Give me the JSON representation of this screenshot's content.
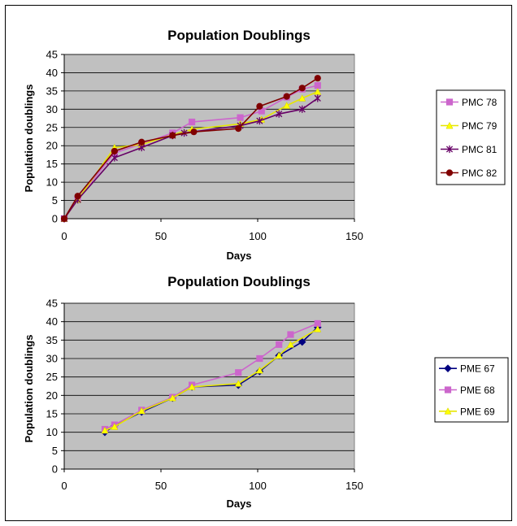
{
  "charts": [
    {
      "title": "Population Doublings",
      "xlabel": "Days",
      "ylabel": "Population doublings",
      "xticks": [
        "0",
        "50",
        "100",
        "150"
      ],
      "yticks": [
        "0",
        "5",
        "10",
        "15",
        "20",
        "25",
        "30",
        "35",
        "40",
        "45"
      ]
    },
    {
      "title": "Population Doublings",
      "xlabel": "Days",
      "ylabel": "Population doublings",
      "xticks": [
        "0",
        "50",
        "100",
        "150"
      ],
      "yticks": [
        "0",
        "5",
        "10",
        "15",
        "20",
        "25",
        "30",
        "35",
        "40",
        "45"
      ]
    }
  ],
  "chart_data": [
    {
      "type": "line",
      "title": "Population Doublings",
      "xlabel": "Days",
      "ylabel": "Population doublings",
      "xlim": [
        0,
        150
      ],
      "ylim": [
        0,
        45
      ],
      "grid": true,
      "legend": "right",
      "plot_background": "#c0c0c0",
      "series": [
        {
          "name": "PMC 78",
          "color": "#cc66cc",
          "marker": "square",
          "x": [
            0,
            7,
            26,
            40,
            56,
            66,
            91,
            102,
            115,
            123,
            131
          ],
          "y": [
            0,
            5.5,
            18,
            20.5,
            23.5,
            26.5,
            27.7,
            29.5,
            33.3,
            35.5,
            36.5
          ]
        },
        {
          "name": "PMC 79",
          "color": "#ffff00",
          "marker": "triangle",
          "x": [
            0,
            7,
            26,
            40,
            56,
            66,
            91,
            102,
            115,
            123,
            131
          ],
          "y": [
            0,
            5.2,
            19.5,
            20.3,
            23.0,
            24.5,
            26.0,
            27.2,
            31.0,
            33.0,
            34.8
          ]
        },
        {
          "name": "PMC 81",
          "color": "#660066",
          "marker": "star",
          "x": [
            0,
            7,
            26,
            40,
            56,
            62,
            91,
            101,
            111,
            123,
            131
          ],
          "y": [
            0,
            5.2,
            16.7,
            19.5,
            22.8,
            23.5,
            25.5,
            26.8,
            28.7,
            30.0,
            33.0
          ]
        },
        {
          "name": "PMC 82",
          "color": "#800000",
          "marker": "circle",
          "x": [
            0,
            7,
            26,
            40,
            56,
            67,
            90,
            101,
            115,
            123,
            131
          ],
          "y": [
            0,
            6.2,
            18.5,
            21.0,
            22.8,
            23.8,
            24.7,
            30.8,
            33.5,
            35.8,
            38.5
          ]
        }
      ]
    },
    {
      "type": "line",
      "title": "Population Doublings",
      "xlabel": "Days",
      "ylabel": "Population doublings",
      "xlim": [
        0,
        150
      ],
      "ylim": [
        0,
        45
      ],
      "grid": true,
      "legend": "right",
      "plot_background": "#c0c0c0",
      "series": [
        {
          "name": "PME 67",
          "color": "#000080",
          "marker": "diamond",
          "x": [
            21,
            26,
            40,
            56,
            66,
            90,
            101,
            111,
            123,
            131
          ],
          "y": [
            10,
            11.8,
            15.5,
            19.3,
            22.3,
            22.8,
            26.5,
            30.8,
            34.5,
            38.5
          ]
        },
        {
          "name": "PME 68",
          "color": "#cc66cc",
          "marker": "square",
          "x": [
            21,
            26,
            40,
            56,
            66,
            90,
            101,
            111,
            117,
            131
          ],
          "y": [
            10.8,
            12.0,
            16.0,
            19.5,
            22.8,
            26.2,
            30.0,
            33.8,
            36.5,
            39.5
          ]
        },
        {
          "name": "PME 69",
          "color": "#ffff00",
          "marker": "triangle",
          "x": [
            21,
            26,
            40,
            56,
            66,
            90,
            101,
            111,
            117,
            131
          ],
          "y": [
            10.5,
            11.5,
            15.8,
            19.3,
            22.3,
            23.2,
            26.8,
            30.8,
            33.8,
            38.0
          ]
        }
      ]
    }
  ]
}
